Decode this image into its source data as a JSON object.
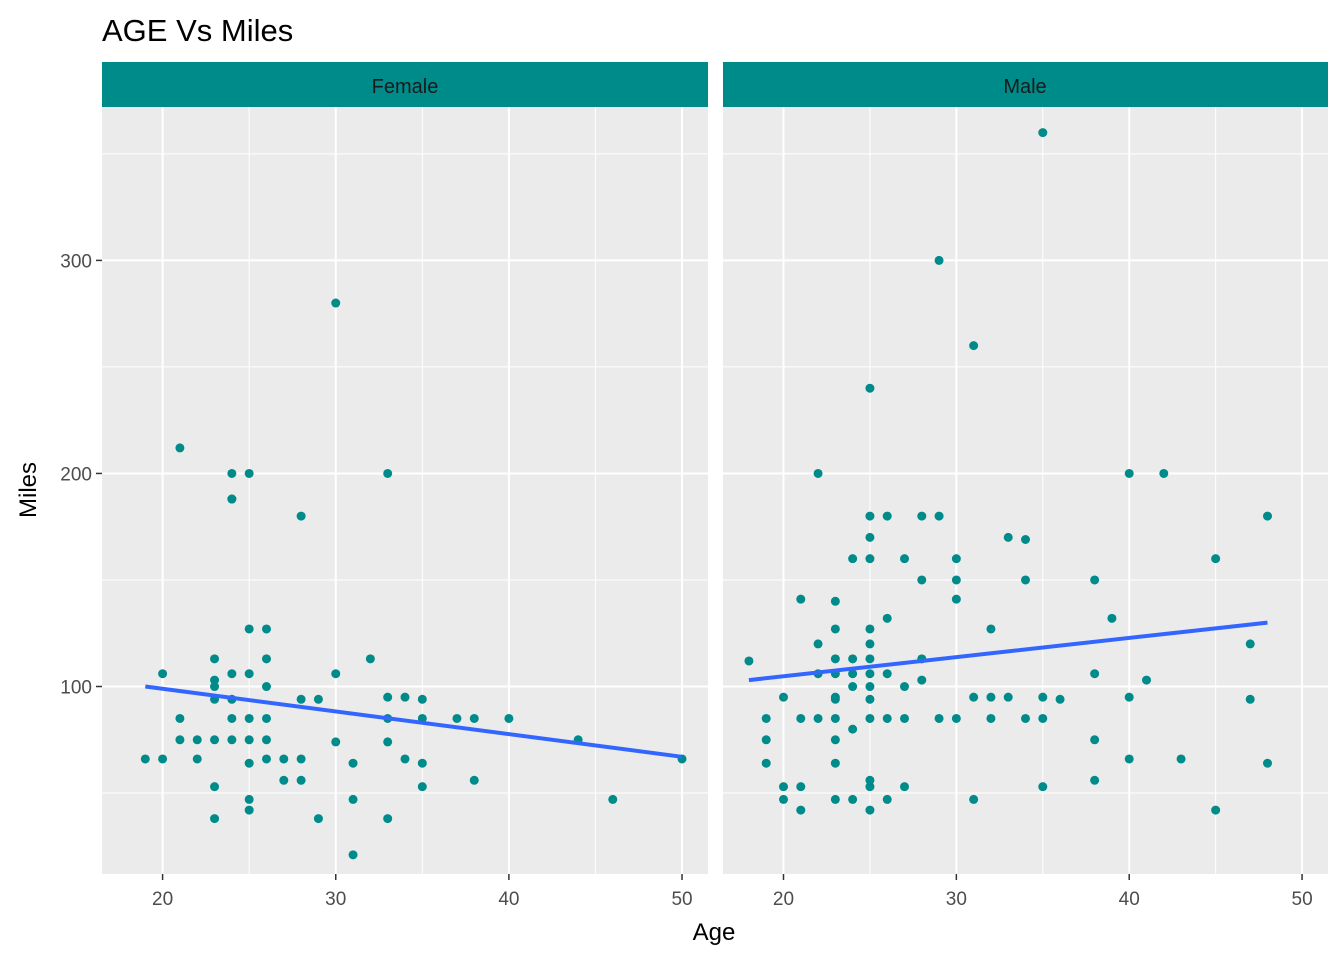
{
  "chart_data": {
    "type": "scatter",
    "title": "AGE Vs Miles",
    "xlabel": "Age",
    "ylabel": "Miles",
    "xlim": [
      16.5,
      51.5
    ],
    "ylim": [
      12,
      372
    ],
    "x_ticks": [
      20,
      30,
      40,
      50
    ],
    "y_ticks": [
      100,
      200,
      300
    ],
    "grid": true,
    "colors": {
      "points": "#008B8B",
      "trend": "#3366FF",
      "strip": "#008B8B",
      "panel_bg": "#EBEBEB",
      "grid": "#FFFFFF"
    },
    "panels": [
      {
        "name": "Female",
        "trend": {
          "x": [
            19,
            50
          ],
          "y": [
            100,
            67
          ]
        },
        "points": [
          [
            19,
            66
          ],
          [
            20,
            66
          ],
          [
            20,
            106
          ],
          [
            21,
            212
          ],
          [
            21,
            85
          ],
          [
            21,
            75
          ],
          [
            22,
            75
          ],
          [
            22,
            66
          ],
          [
            23,
            113
          ],
          [
            23,
            103
          ],
          [
            23,
            100
          ],
          [
            23,
            94
          ],
          [
            23,
            75
          ],
          [
            23,
            53
          ],
          [
            23,
            38
          ],
          [
            24,
            200
          ],
          [
            24,
            188
          ],
          [
            24,
            188
          ],
          [
            24,
            106
          ],
          [
            24,
            94
          ],
          [
            24,
            85
          ],
          [
            24,
            75
          ],
          [
            25,
            200
          ],
          [
            25,
            127
          ],
          [
            25,
            106
          ],
          [
            25,
            85
          ],
          [
            25,
            75
          ],
          [
            25,
            64
          ],
          [
            25,
            47
          ],
          [
            25,
            42
          ],
          [
            26,
            127
          ],
          [
            26,
            113
          ],
          [
            26,
            100
          ],
          [
            26,
            85
          ],
          [
            26,
            75
          ],
          [
            26,
            66
          ],
          [
            27,
            66
          ],
          [
            27,
            56
          ],
          [
            28,
            180
          ],
          [
            28,
            94
          ],
          [
            28,
            66
          ],
          [
            28,
            56
          ],
          [
            29,
            94
          ],
          [
            29,
            38
          ],
          [
            30,
            280
          ],
          [
            30,
            106
          ],
          [
            30,
            74
          ],
          [
            31,
            64
          ],
          [
            31,
            47
          ],
          [
            31,
            21
          ],
          [
            32,
            113
          ],
          [
            33,
            200
          ],
          [
            33,
            95
          ],
          [
            33,
            85
          ],
          [
            33,
            74
          ],
          [
            33,
            38
          ],
          [
            34,
            95
          ],
          [
            34,
            66
          ],
          [
            35,
            94
          ],
          [
            35,
            85
          ],
          [
            35,
            64
          ],
          [
            35,
            53
          ],
          [
            37,
            85
          ],
          [
            38,
            85
          ],
          [
            38,
            56
          ],
          [
            40,
            85
          ],
          [
            44,
            75
          ],
          [
            46,
            47
          ],
          [
            50,
            66
          ]
        ]
      },
      {
        "name": "Male",
        "trend": {
          "x": [
            18,
            48
          ],
          "y": [
            103,
            130
          ]
        },
        "points": [
          [
            18,
            112
          ],
          [
            19,
            85
          ],
          [
            19,
            75
          ],
          [
            19,
            64
          ],
          [
            20,
            95
          ],
          [
            20,
            53
          ],
          [
            20,
            47
          ],
          [
            21,
            141
          ],
          [
            21,
            85
          ],
          [
            21,
            53
          ],
          [
            21,
            42
          ],
          [
            22,
            200
          ],
          [
            22,
            120
          ],
          [
            22,
            106
          ],
          [
            22,
            85
          ],
          [
            23,
            140
          ],
          [
            23,
            127
          ],
          [
            23,
            113
          ],
          [
            23,
            106
          ],
          [
            23,
            95
          ],
          [
            23,
            94
          ],
          [
            23,
            85
          ],
          [
            23,
            75
          ],
          [
            23,
            64
          ],
          [
            23,
            47
          ],
          [
            24,
            160
          ],
          [
            24,
            113
          ],
          [
            24,
            106
          ],
          [
            24,
            100
          ],
          [
            24,
            80
          ],
          [
            24,
            47
          ],
          [
            25,
            240
          ],
          [
            25,
            180
          ],
          [
            25,
            170
          ],
          [
            25,
            160
          ],
          [
            25,
            127
          ],
          [
            25,
            120
          ],
          [
            25,
            113
          ],
          [
            25,
            106
          ],
          [
            25,
            100
          ],
          [
            25,
            94
          ],
          [
            25,
            85
          ],
          [
            25,
            56
          ],
          [
            25,
            53
          ],
          [
            25,
            42
          ],
          [
            26,
            180
          ],
          [
            26,
            132
          ],
          [
            26,
            106
          ],
          [
            26,
            85
          ],
          [
            26,
            47
          ],
          [
            27,
            160
          ],
          [
            27,
            100
          ],
          [
            27,
            85
          ],
          [
            27,
            53
          ],
          [
            28,
            180
          ],
          [
            28,
            150
          ],
          [
            28,
            113
          ],
          [
            28,
            103
          ],
          [
            29,
            300
          ],
          [
            29,
            180
          ],
          [
            29,
            85
          ],
          [
            30,
            160
          ],
          [
            30,
            150
          ],
          [
            30,
            141
          ],
          [
            30,
            85
          ],
          [
            31,
            260
          ],
          [
            31,
            95
          ],
          [
            31,
            47
          ],
          [
            32,
            127
          ],
          [
            32,
            95
          ],
          [
            32,
            85
          ],
          [
            33,
            170
          ],
          [
            33,
            95
          ],
          [
            34,
            169
          ],
          [
            34,
            150
          ],
          [
            34,
            85
          ],
          [
            35,
            360
          ],
          [
            35,
            95
          ],
          [
            35,
            85
          ],
          [
            35,
            53
          ],
          [
            36,
            94
          ],
          [
            38,
            150
          ],
          [
            38,
            106
          ],
          [
            38,
            75
          ],
          [
            38,
            56
          ],
          [
            39,
            132
          ],
          [
            40,
            200
          ],
          [
            40,
            95
          ],
          [
            40,
            66
          ],
          [
            41,
            103
          ],
          [
            42,
            200
          ],
          [
            43,
            66
          ],
          [
            45,
            160
          ],
          [
            45,
            42
          ],
          [
            47,
            120
          ],
          [
            47,
            94
          ],
          [
            48,
            180
          ],
          [
            48,
            64
          ]
        ]
      }
    ]
  }
}
